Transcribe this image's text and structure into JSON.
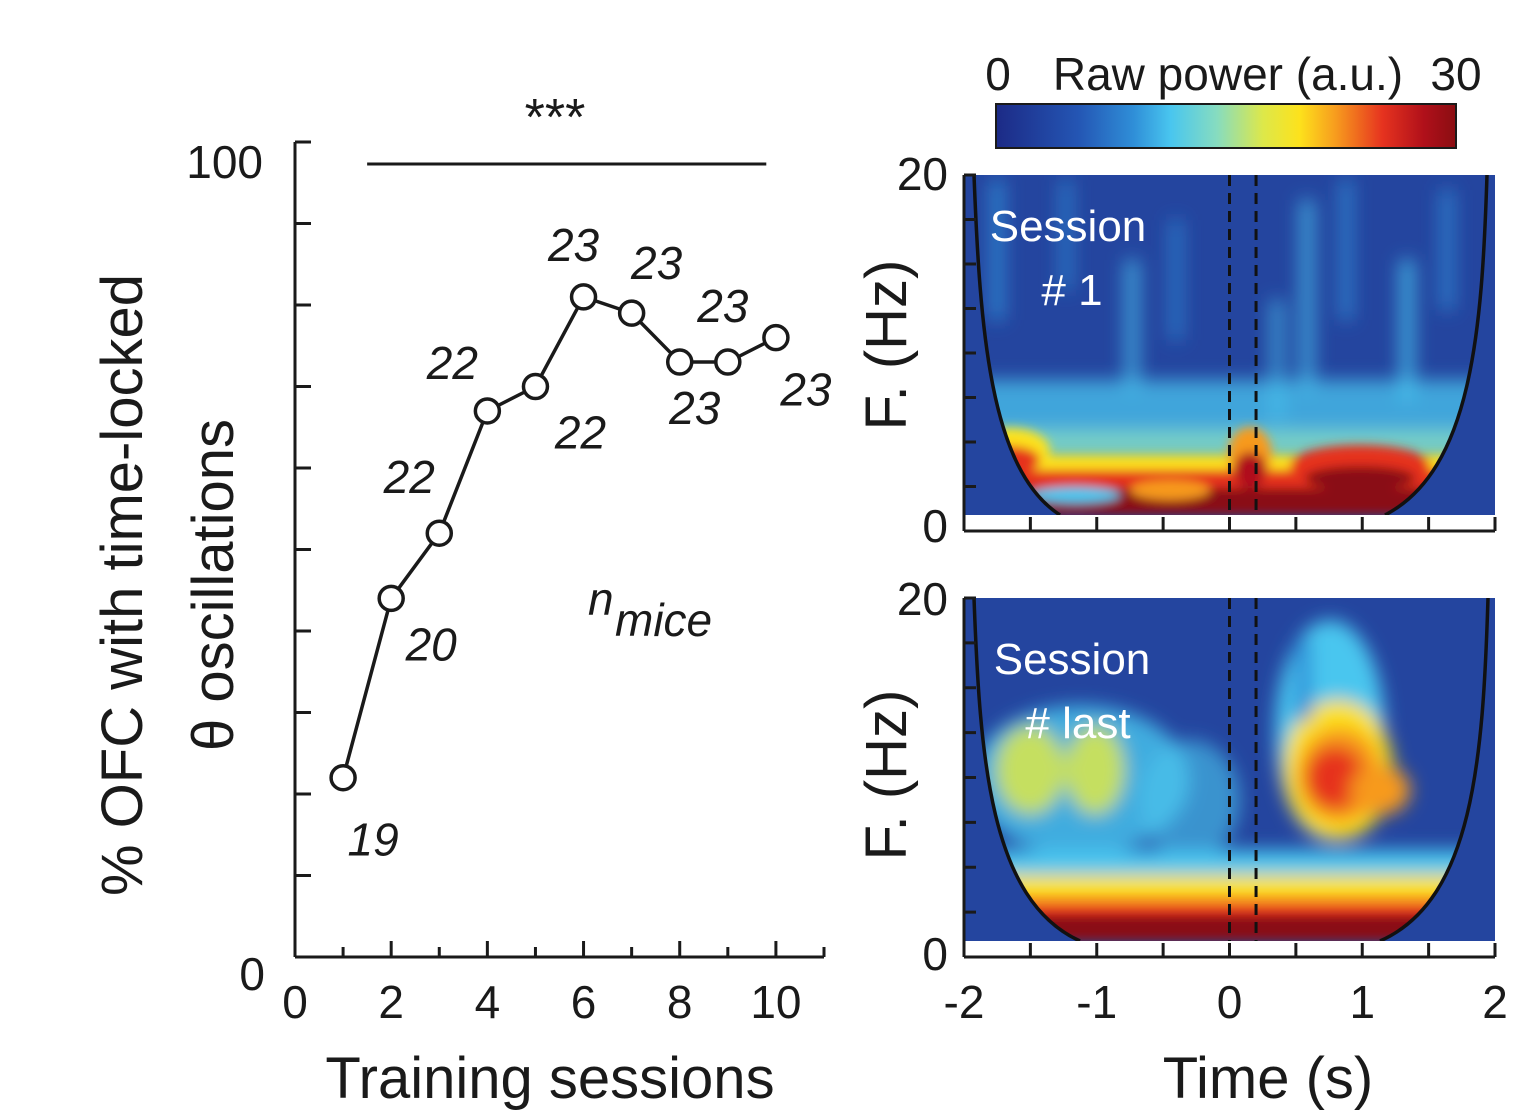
{
  "chart_data": [
    {
      "type": "line",
      "title": "",
      "xlabel": "Training sessions",
      "ylabel_line1": "% OFC with time-locked",
      "ylabel_line2": "θ oscillations",
      "xlim": [
        0,
        11
      ],
      "ylim": [
        0,
        100
      ],
      "x_ticks": [
        "0",
        "2",
        "4",
        "6",
        "8",
        "10"
      ],
      "y_ticks": [
        "0",
        "100"
      ],
      "x": [
        1,
        2,
        3,
        4,
        5,
        6,
        7,
        8,
        9,
        10
      ],
      "values": [
        22,
        44,
        52,
        67,
        70,
        81,
        79,
        73,
        73,
        76
      ],
      "point_labels": [
        "19",
        "20",
        "22",
        "22",
        "22",
        "23",
        "23",
        "23",
        "23",
        "23"
      ],
      "n_label": "n",
      "n_subscript": "mice",
      "significance": "***",
      "significance_span": [
        1.5,
        9.8
      ]
    },
    {
      "type": "heatmap",
      "panels": [
        {
          "label_line1": "Session",
          "label_line2": "# 1"
        },
        {
          "label_line1": "Session",
          "label_line2": "# last"
        }
      ],
      "xlabel": "Time (s)",
      "ylabel": "F. (Hz)",
      "xlim": [
        -2,
        2
      ],
      "ylim": [
        0,
        20
      ],
      "x_ticks": [
        "-2",
        "-1",
        "0",
        "1",
        "2"
      ],
      "y_ticks": [
        "0",
        "20"
      ],
      "event_lines": [
        0,
        0.2
      ],
      "colorbar": {
        "label": "Raw power (a.u.)",
        "min": "0",
        "max": "30"
      }
    }
  ],
  "colors": {
    "line": "#1a1a1a",
    "marker_fill": "#ffffff",
    "cmap": [
      "#1c2a86",
      "#2456b4",
      "#2f8fd8",
      "#49c6ef",
      "#86dcc0",
      "#dde84a",
      "#fde21c",
      "#f79a1e",
      "#e6331f",
      "#b0101a",
      "#8a0d12"
    ]
  }
}
